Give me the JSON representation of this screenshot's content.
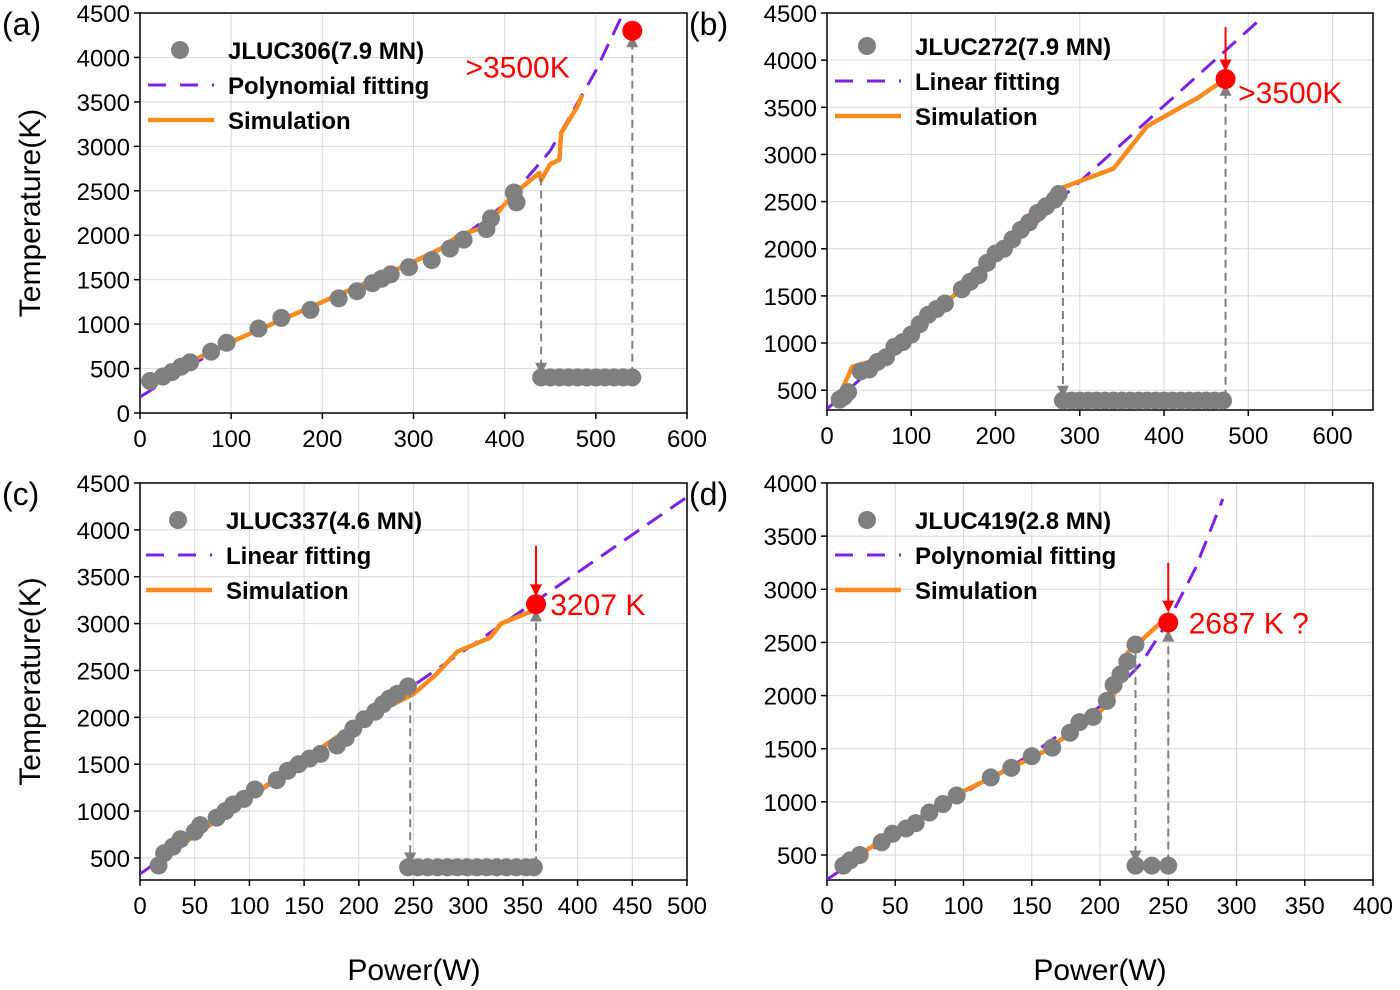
{
  "colors": {
    "scatter": "#7f7f7f",
    "fit": "#7b22e6",
    "simulation": "#fb8a1f",
    "highlight": "#ff0000",
    "arrow": "#808080"
  },
  "chart_data": [
    {
      "panel": "(a)",
      "type": "scatter",
      "xlabel": "",
      "ylabel": "Temperature(K)",
      "xlim": [
        0,
        600
      ],
      "ylim": [
        0,
        4500
      ],
      "xticks": [
        0,
        100,
        200,
        300,
        400,
        500,
        600
      ],
      "yticks": [
        0,
        500,
        1000,
        1500,
        2000,
        2500,
        3000,
        3500,
        4000,
        4500
      ],
      "legend_position": "top-left",
      "series": [
        {
          "name": "JLUC306(7.9 MN)",
          "kind": "scatter",
          "x": [
            11,
            25,
            35,
            45,
            55,
            78,
            95,
            130,
            155,
            187,
            218,
            238,
            255,
            265,
            275,
            295,
            320,
            340,
            355,
            380,
            385,
            410,
            413
          ],
          "y": [
            360,
            410,
            460,
            520,
            570,
            690,
            790,
            950,
            1070,
            1160,
            1290,
            1370,
            1460,
            1510,
            1560,
            1640,
            1720,
            1850,
            1950,
            2070,
            2190,
            2480,
            2370
          ]
        },
        {
          "name": "",
          "kind": "scatter-low",
          "x": [
            440,
            450,
            460,
            470,
            480,
            490,
            500,
            510,
            520,
            530,
            540
          ],
          "y": [
            400,
            400,
            400,
            400,
            400,
            400,
            400,
            400,
            400,
            400,
            400
          ]
        },
        {
          "name": "Polynomial fitting",
          "kind": "fit",
          "x": [
            0,
            50,
            100,
            150,
            200,
            250,
            300,
            350,
            400,
            450,
            500,
            530
          ],
          "y": [
            180,
            500,
            800,
            1020,
            1250,
            1470,
            1700,
            1950,
            2350,
            2950,
            3850,
            4500
          ]
        },
        {
          "name": "Simulation",
          "kind": "simulation",
          "x": [
            10,
            100,
            200,
            300,
            330,
            350,
            380,
            400,
            420,
            438,
            440,
            450,
            460,
            462,
            480,
            485
          ],
          "y": [
            350,
            800,
            1250,
            1700,
            1850,
            2000,
            2100,
            2350,
            2550,
            2700,
            2620,
            2800,
            2850,
            3150,
            3450,
            3580
          ]
        }
      ],
      "highlight": {
        "x": 540,
        "y": 4300
      },
      "arrows": [
        {
          "x": 440,
          "from": 2650,
          "to": 430
        },
        {
          "x": 540,
          "from": 430,
          "to": 4250
        }
      ],
      "annotation": {
        "text": ">3500K",
        "x": 357,
        "y": 3900
      }
    },
    {
      "panel": "(b)",
      "type": "scatter",
      "xlabel": "",
      "ylabel": "",
      "xlim": [
        0,
        648
      ],
      "ylim": [
        290,
        4500
      ],
      "xticks": [
        0,
        100,
        200,
        300,
        400,
        500,
        600
      ],
      "yticks": [
        500,
        1000,
        1500,
        2000,
        2500,
        3000,
        3500,
        4000,
        4500
      ],
      "legend_position": "top-left",
      "series": [
        {
          "name": "JLUC272(7.9 MN)",
          "kind": "scatter",
          "x": [
            15,
            20,
            25,
            40,
            50,
            60,
            70,
            80,
            90,
            100,
            110,
            120,
            130,
            140,
            160,
            170,
            180,
            190,
            200,
            210,
            220,
            230,
            240,
            250,
            260,
            270,
            275
          ],
          "y": [
            400,
            430,
            480,
            700,
            720,
            800,
            850,
            960,
            1010,
            1090,
            1200,
            1300,
            1360,
            1420,
            1570,
            1650,
            1720,
            1850,
            1950,
            2000,
            2100,
            2200,
            2280,
            2380,
            2450,
            2520,
            2580
          ]
        },
        {
          "name": "",
          "kind": "scatter-low",
          "x": [
            280,
            290,
            300,
            310,
            320,
            330,
            340,
            350,
            360,
            370,
            380,
            390,
            400,
            410,
            420,
            430,
            440,
            450,
            460,
            470
          ],
          "y": [
            390,
            390,
            390,
            390,
            390,
            390,
            390,
            390,
            390,
            390,
            390,
            390,
            390,
            390,
            390,
            390,
            390,
            390,
            390,
            390
          ]
        },
        {
          "name": "Linear fitting",
          "kind": "fit",
          "x": [
            0,
            510
          ],
          "y": [
            300,
            4400
          ]
        },
        {
          "name": "Simulation",
          "kind": "simulation",
          "x": [
            10,
            30,
            50,
            100,
            200,
            270,
            280,
            340,
            380,
            440,
            473
          ],
          "y": [
            350,
            750,
            800,
            1100,
            1900,
            2450,
            2650,
            2850,
            3300,
            3600,
            3800
          ]
        }
      ],
      "highlight": {
        "x": 473,
        "y": 3800
      },
      "arrows": [
        {
          "x": 280,
          "from": 2580,
          "to": 420
        },
        {
          "x": 473,
          "from": 420,
          "to": 3750
        },
        {
          "x": 473,
          "from": 4350,
          "to": 3880,
          "red": true
        }
      ],
      "annotation": {
        "text": ">3500K",
        "x": 488,
        "y": 3660
      }
    },
    {
      "panel": "(c)",
      "type": "scatter",
      "xlabel": "",
      "ylabel": "Temperature(K)",
      "xlim": [
        0,
        500
      ],
      "ylim": [
        265,
        4500
      ],
      "xticks": [
        0,
        50,
        100,
        150,
        200,
        250,
        300,
        350,
        400,
        450,
        500
      ],
      "yticks": [
        500,
        1000,
        1500,
        2000,
        2500,
        3000,
        3500,
        4000,
        4500
      ],
      "legend_position": "top-left",
      "series": [
        {
          "name": "JLUC337(4.6 MN)",
          "kind": "scatter",
          "x": [
            17,
            22,
            30,
            37,
            50,
            55,
            70,
            78,
            85,
            95,
            105,
            125,
            135,
            145,
            155,
            165,
            180,
            188,
            195,
            205,
            215,
            222,
            228,
            235,
            245
          ],
          "y": [
            420,
            550,
            620,
            700,
            780,
            850,
            930,
            1000,
            1070,
            1130,
            1230,
            1330,
            1430,
            1500,
            1560,
            1610,
            1700,
            1780,
            1880,
            1980,
            2060,
            2140,
            2200,
            2250,
            2330
          ]
        },
        {
          "name": "",
          "kind": "scatter-low",
          "x": [
            245,
            254,
            263,
            272,
            281,
            290,
            299,
            308,
            317,
            326,
            335,
            344,
            353,
            360
          ],
          "y": [
            400,
            400,
            400,
            400,
            400,
            400,
            400,
            400,
            400,
            400,
            400,
            400,
            400,
            400
          ]
        },
        {
          "name": "Linear fitting",
          "kind": "fit",
          "x": [
            0,
            500
          ],
          "y": [
            330,
            4350
          ]
        },
        {
          "name": "Simulation",
          "kind": "simulation",
          "x": [
            15,
            100,
            200,
            250,
            270,
            290,
            320,
            330,
            362
          ],
          "y": [
            450,
            1150,
            1950,
            2250,
            2450,
            2700,
            2850,
            3000,
            3150
          ]
        }
      ],
      "highlight": {
        "x": 362,
        "y": 3207
      },
      "arrows": [
        {
          "x": 247,
          "from": 2300,
          "to": 430
        },
        {
          "x": 362,
          "from": 430,
          "to": 3150
        },
        {
          "x": 362,
          "from": 3830,
          "to": 3290,
          "red": true
        }
      ],
      "annotation": {
        "text": "3207 K",
        "x": 375,
        "y": 3207
      }
    },
    {
      "panel": "(d)",
      "type": "scatter",
      "xlabel": "Power(W)",
      "ylabel": "",
      "xlim": [
        0,
        400
      ],
      "ylim": [
        265,
        4000
      ],
      "xticks": [
        0,
        50,
        100,
        150,
        200,
        250,
        300,
        350,
        400
      ],
      "yticks": [
        500,
        1000,
        1500,
        2000,
        2500,
        3000,
        3500,
        4000
      ],
      "legend_position": "top-left",
      "series": [
        {
          "name": "JLUC419(2.8 MN)",
          "kind": "scatter",
          "x": [
            12,
            17,
            24,
            40,
            48,
            58,
            65,
            75,
            85,
            95,
            120,
            135,
            150,
            165,
            178,
            185,
            195,
            205,
            210,
            215,
            220,
            226
          ],
          "y": [
            400,
            450,
            500,
            620,
            700,
            750,
            800,
            900,
            980,
            1060,
            1230,
            1320,
            1430,
            1510,
            1650,
            1750,
            1800,
            1950,
            2100,
            2200,
            2320,
            2480
          ]
        },
        {
          "name": "",
          "kind": "scatter-low",
          "x": [
            226,
            238,
            250
          ],
          "y": [
            400,
            400,
            400
          ]
        },
        {
          "name": "Polynomial fitting",
          "kind": "fit",
          "x": [
            0,
            50,
            100,
            150,
            200,
            230,
            250,
            270,
            290
          ],
          "y": [
            270,
            700,
            1080,
            1450,
            1900,
            2300,
            2700,
            3200,
            3850
          ]
        },
        {
          "name": "Simulation",
          "kind": "simulation",
          "x": [
            10,
            100,
            160,
            200,
            210,
            220,
            250
          ],
          "y": [
            400,
            1100,
            1480,
            1850,
            2000,
            2400,
            2750
          ]
        }
      ],
      "highlight": {
        "x": 250,
        "y": 2687
      },
      "arrows": [
        {
          "x": 226,
          "from": 2420,
          "to": 430
        },
        {
          "x": 250,
          "from": 430,
          "to": 2620
        },
        {
          "x": 250,
          "from": 3250,
          "to": 2780,
          "red": true
        }
      ],
      "annotation": {
        "text": "2687 K ?",
        "x": 265,
        "y": 2687
      }
    }
  ],
  "bottom_xlabel": "Power(W)"
}
